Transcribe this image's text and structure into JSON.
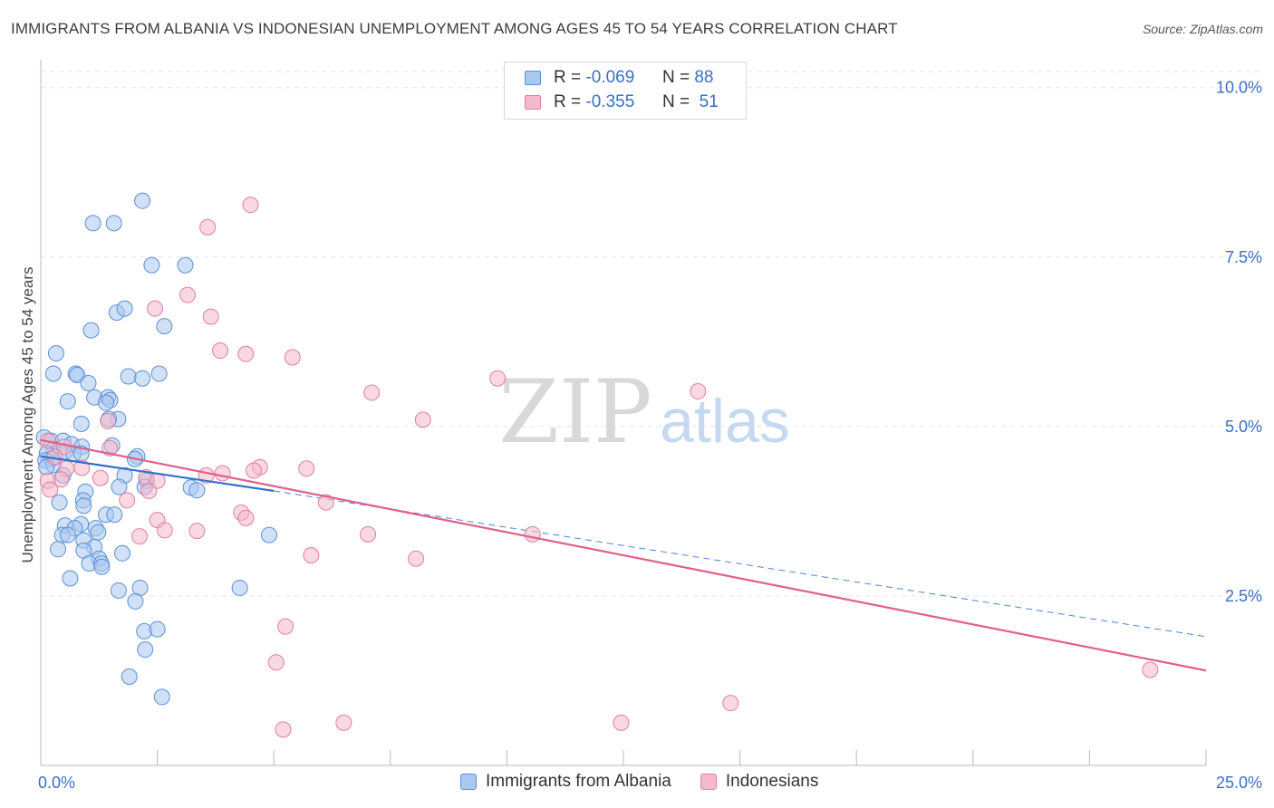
{
  "header": {
    "title": "IMMIGRANTS FROM ALBANIA VS INDONESIAN UNEMPLOYMENT AMONG AGES 45 TO 54 YEARS CORRELATION CHART",
    "source": "Source: ZipAtlas.com"
  },
  "watermark": {
    "zip": "ZIP",
    "atlas": "atlas"
  },
  "colors": {
    "albania_fill": "#a9c8f0",
    "albania_stroke": "#5b8fd6",
    "albania_line": "#2f6fd0",
    "indonesian_fill": "#f6b8cb",
    "indonesian_stroke": "#e07fa0",
    "indonesian_line": "#e0608a",
    "value_text": "#3a6fc4",
    "grid": "#e3e3e3"
  },
  "legend_top": {
    "rows": [
      {
        "r_label": "R =",
        "r_value": "-0.069",
        "n_label": "N =",
        "n_value": "88"
      },
      {
        "r_label": "R =",
        "r_value": "-0.355",
        "n_label": "N =",
        "n_value": "51"
      }
    ]
  },
  "chart_data": {
    "type": "scatter",
    "title": "IMMIGRANTS FROM ALBANIA VS INDONESIAN UNEMPLOYMENT AMONG AGES 45 TO 54 YEARS CORRELATION CHART",
    "ylabel": "Unemployment Among Ages 45 to 54 years",
    "xlabel": "",
    "xlim": [
      0,
      25
    ],
    "ylim": [
      0,
      10.25
    ],
    "x_tick_labels": [
      {
        "value": 0,
        "label": "0.0%"
      },
      {
        "value": 25,
        "label": "25.0%"
      }
    ],
    "y_tick_labels": [
      {
        "value": 2.5,
        "label": "2.5%"
      },
      {
        "value": 5.0,
        "label": "5.0%"
      },
      {
        "value": 7.5,
        "label": "7.5%"
      },
      {
        "value": 10.0,
        "label": "10.0%"
      }
    ],
    "grid": true,
    "legend_position": "bottom-center",
    "series": [
      {
        "name": "Immigrants from Albania",
        "r": -0.069,
        "n": 88,
        "trend_solid": [
          [
            0.0,
            4.56
          ],
          [
            5.0,
            4.05
          ]
        ],
        "trend_dashed": [
          [
            5.0,
            4.05
          ],
          [
            25.0,
            1.9
          ]
        ],
        "points": [
          [
            2.18,
            8.33
          ],
          [
            1.12,
            8.0
          ],
          [
            1.57,
            8.0
          ],
          [
            2.38,
            7.38
          ],
          [
            3.1,
            7.38
          ],
          [
            1.63,
            6.68
          ],
          [
            1.8,
            6.74
          ],
          [
            2.65,
            6.48
          ],
          [
            1.08,
            6.42
          ],
          [
            0.33,
            6.08
          ],
          [
            0.27,
            5.78
          ],
          [
            0.75,
            5.78
          ],
          [
            0.78,
            5.76
          ],
          [
            1.88,
            5.74
          ],
          [
            2.54,
            5.78
          ],
          [
            2.18,
            5.71
          ],
          [
            1.02,
            5.64
          ],
          [
            1.15,
            5.43
          ],
          [
            1.44,
            5.43
          ],
          [
            1.49,
            5.39
          ],
          [
            1.4,
            5.35
          ],
          [
            0.58,
            5.37
          ],
          [
            1.66,
            5.11
          ],
          [
            1.46,
            5.11
          ],
          [
            0.87,
            5.04
          ],
          [
            0.07,
            4.84
          ],
          [
            0.22,
            4.79
          ],
          [
            0.48,
            4.79
          ],
          [
            0.66,
            4.74
          ],
          [
            0.88,
            4.7
          ],
          [
            0.28,
            4.67
          ],
          [
            0.52,
            4.63
          ],
          [
            0.7,
            4.6
          ],
          [
            0.87,
            4.6
          ],
          [
            1.53,
            4.72
          ],
          [
            0.13,
            4.6
          ],
          [
            0.23,
            4.52
          ],
          [
            0.1,
            4.5
          ],
          [
            2.07,
            4.56
          ],
          [
            2.02,
            4.52
          ],
          [
            0.27,
            4.43
          ],
          [
            0.12,
            4.4
          ],
          [
            0.48,
            4.28
          ],
          [
            1.8,
            4.28
          ],
          [
            2.27,
            4.2
          ],
          [
            2.23,
            4.11
          ],
          [
            1.68,
            4.11
          ],
          [
            3.22,
            4.1
          ],
          [
            3.35,
            4.06
          ],
          [
            0.96,
            4.04
          ],
          [
            0.91,
            3.91
          ],
          [
            0.4,
            3.88
          ],
          [
            0.92,
            3.83
          ],
          [
            1.4,
            3.7
          ],
          [
            1.58,
            3.7
          ],
          [
            0.86,
            3.56
          ],
          [
            0.52,
            3.54
          ],
          [
            0.73,
            3.5
          ],
          [
            1.18,
            3.5
          ],
          [
            1.23,
            3.44
          ],
          [
            0.46,
            3.4
          ],
          [
            0.58,
            3.4
          ],
          [
            4.9,
            3.4
          ],
          [
            0.92,
            3.32
          ],
          [
            1.15,
            3.22
          ],
          [
            0.37,
            3.19
          ],
          [
            0.92,
            3.17
          ],
          [
            1.75,
            3.13
          ],
          [
            1.25,
            3.05
          ],
          [
            1.04,
            2.98
          ],
          [
            1.3,
            2.98
          ],
          [
            1.31,
            2.93
          ],
          [
            0.63,
            2.76
          ],
          [
            4.27,
            2.62
          ],
          [
            2.13,
            2.62
          ],
          [
            1.67,
            2.58
          ],
          [
            2.03,
            2.42
          ],
          [
            2.22,
            1.98
          ],
          [
            2.5,
            2.01
          ],
          [
            2.24,
            1.71
          ],
          [
            1.9,
            1.31
          ],
          [
            2.6,
            1.01
          ]
        ]
      },
      {
        "name": "Indonesians",
        "r": -0.355,
        "n": 51,
        "trend_solid": [
          [
            0.0,
            4.8
          ],
          [
            25.0,
            1.4
          ]
        ],
        "points": [
          [
            4.5,
            8.27
          ],
          [
            3.58,
            7.94
          ],
          [
            3.15,
            6.94
          ],
          [
            2.45,
            6.74
          ],
          [
            3.65,
            6.62
          ],
          [
            3.85,
            6.12
          ],
          [
            4.4,
            6.07
          ],
          [
            5.4,
            6.02
          ],
          [
            9.8,
            5.71
          ],
          [
            14.1,
            5.52
          ],
          [
            7.1,
            5.5
          ],
          [
            8.2,
            5.1
          ],
          [
            1.44,
            5.08
          ],
          [
            0.15,
            4.79
          ],
          [
            0.5,
            4.7
          ],
          [
            1.48,
            4.68
          ],
          [
            0.3,
            4.55
          ],
          [
            0.55,
            4.38
          ],
          [
            0.88,
            4.39
          ],
          [
            4.7,
            4.4
          ],
          [
            5.7,
            4.38
          ],
          [
            4.57,
            4.35
          ],
          [
            3.9,
            4.31
          ],
          [
            0.43,
            4.22
          ],
          [
            1.28,
            4.24
          ],
          [
            2.26,
            4.25
          ],
          [
            2.5,
            4.2
          ],
          [
            3.55,
            4.28
          ],
          [
            0.15,
            4.2
          ],
          [
            2.32,
            4.05
          ],
          [
            0.2,
            4.07
          ],
          [
            1.85,
            3.91
          ],
          [
            6.12,
            3.88
          ],
          [
            4.3,
            3.73
          ],
          [
            4.4,
            3.65
          ],
          [
            2.5,
            3.62
          ],
          [
            2.66,
            3.47
          ],
          [
            3.35,
            3.46
          ],
          [
            2.12,
            3.38
          ],
          [
            7.02,
            3.41
          ],
          [
            10.55,
            3.41
          ],
          [
            5.8,
            3.1
          ],
          [
            8.05,
            3.05
          ],
          [
            5.25,
            2.05
          ],
          [
            5.05,
            1.52
          ],
          [
            23.8,
            1.41
          ],
          [
            14.8,
            0.92
          ],
          [
            6.5,
            0.63
          ],
          [
            12.45,
            0.63
          ],
          [
            5.2,
            0.53
          ]
        ]
      }
    ]
  },
  "bottom_legend": {
    "items": [
      {
        "label": "Immigrants from Albania"
      },
      {
        "label": "Indonesians"
      }
    ]
  }
}
